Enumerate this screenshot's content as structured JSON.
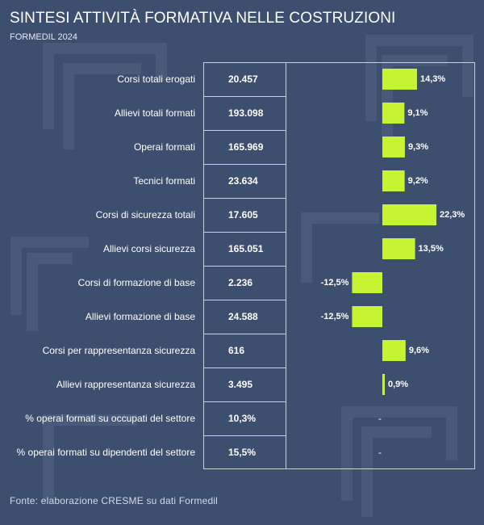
{
  "header": {
    "title": "SINTESI ATTIVITÀ FORMATIVA NELLE COSTRUZIONI",
    "subtitle": "FORMEDIL 2024"
  },
  "source": "Fonte: elaborazione CRESME su dati Formedil",
  "colors": {
    "background": "#3d4f6e",
    "bar": "#c6f432",
    "grid": "#c8d0dc",
    "text": "#ffffff"
  },
  "chart_data": {
    "type": "bar",
    "orientation": "horizontal",
    "title": "SINTESI ATTIVITÀ FORMATIVA NELLE COSTRUZIONI",
    "subtitle": "FORMEDIL 2024",
    "categories": [
      "Corsi totali erogati",
      "Allievi totali formati",
      "Operai formati",
      "Tecnici formati",
      "Corsi di sicurezza totali",
      "Allievi corsi sicurezza",
      "Corsi di formazione di base",
      "Allievi formazione di base",
      "Corsi per rappresentanza sicurezza",
      "Allievi rappresentanza sicurezza",
      "% operai formati su occupati del settore",
      "% operai formati su dipendenti del settore"
    ],
    "values_2024": [
      "20.457",
      "193.098",
      "165.969",
      "23.634",
      "17.605",
      "165.051",
      "2.236",
      "24.588",
      "616",
      "3.495",
      "10,3%",
      "15,5%"
    ],
    "change_pct": [
      14.3,
      9.1,
      9.3,
      9.2,
      22.3,
      13.5,
      -12.5,
      -12.5,
      9.6,
      0.9,
      null,
      null
    ],
    "change_labels": [
      "14,3%",
      "9,1%",
      "9,3%",
      "9,2%",
      "22,3%",
      "13,5%",
      "-12,5%",
      "-12,5%",
      "9,6%",
      "0,9%",
      "-",
      "-"
    ],
    "xlim": [
      -25,
      25
    ]
  }
}
